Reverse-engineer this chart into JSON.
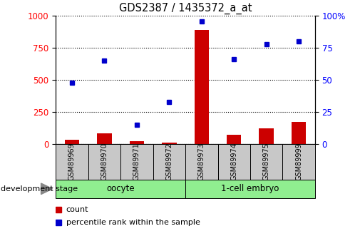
{
  "title": "GDS2387 / 1435372_a_at",
  "samples": [
    "GSM89969",
    "GSM89970",
    "GSM89971",
    "GSM89972",
    "GSM89973",
    "GSM89974",
    "GSM89975",
    "GSM89999"
  ],
  "count_values": [
    30,
    80,
    20,
    10,
    890,
    70,
    120,
    170
  ],
  "percentile_values": [
    48,
    65,
    15,
    33,
    96,
    66,
    78,
    80
  ],
  "left_ylim": [
    0,
    1000
  ],
  "right_ylim": [
    0,
    100
  ],
  "left_yticks": [
    0,
    250,
    500,
    750,
    1000
  ],
  "right_yticks": [
    0,
    25,
    50,
    75,
    100
  ],
  "right_yticklabels": [
    "0",
    "25",
    "50",
    "75",
    "100%"
  ],
  "bar_color": "#CC0000",
  "dot_color": "#0000CC",
  "label_bg_color": "#C8C8C8",
  "group_spans": [
    {
      "label": "oocyte",
      "start": 0,
      "end": 3,
      "color": "#90EE90"
    },
    {
      "label": "1-cell embryo",
      "start": 4,
      "end": 7,
      "color": "#90EE90"
    }
  ],
  "dev_stage_label": "development stage",
  "legend_count_label": "count",
  "legend_percentile_label": "percentile rank within the sample",
  "bg_color": "#ffffff"
}
